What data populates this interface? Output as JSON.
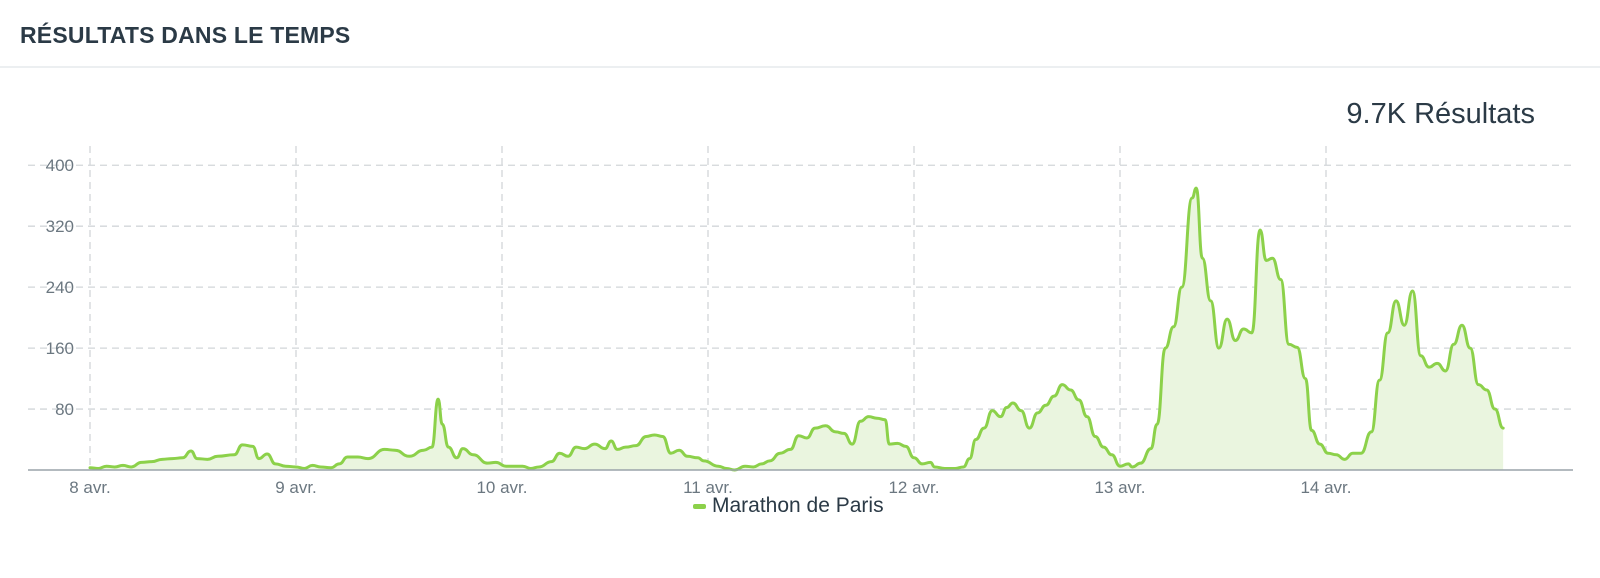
{
  "panel": {
    "title": "RÉSULTATS DANS LE TEMPS",
    "total": "9.7K Résultats"
  },
  "colors": {
    "line": "#8cd14a",
    "fill": "#eaf5df",
    "grid": "#d2d6d9",
    "axis": "#9aa3aa"
  },
  "chart_data": {
    "type": "area",
    "xlabel": "",
    "ylabel": "",
    "x_ticks": [
      "8 avr.",
      "9 avr.",
      "10 avr.",
      "11 avr.",
      "12 avr.",
      "13 avr.",
      "14 avr."
    ],
    "y_ticks": [
      80,
      160,
      240,
      320,
      400
    ],
    "ylim": [
      0,
      420
    ],
    "xlim": [
      0,
      6.95
    ],
    "grid": true,
    "legend_position": "bottom",
    "series": [
      {
        "name": "Marathon de Paris",
        "x_unit": "days since 8 avr.",
        "points": [
          [
            0.0,
            3
          ],
          [
            0.04,
            2
          ],
          [
            0.08,
            5
          ],
          [
            0.12,
            4
          ],
          [
            0.16,
            6
          ],
          [
            0.2,
            4
          ],
          [
            0.25,
            10
          ],
          [
            0.3,
            11
          ],
          [
            0.35,
            14
          ],
          [
            0.4,
            15
          ],
          [
            0.45,
            16
          ],
          [
            0.49,
            25
          ],
          [
            0.52,
            15
          ],
          [
            0.57,
            14
          ],
          [
            0.62,
            18
          ],
          [
            0.7,
            20
          ],
          [
            0.74,
            33
          ],
          [
            0.79,
            31
          ],
          [
            0.82,
            15
          ],
          [
            0.86,
            21
          ],
          [
            0.9,
            8
          ],
          [
            0.95,
            5
          ],
          [
            1.0,
            4
          ],
          [
            1.04,
            2
          ],
          [
            1.08,
            6
          ],
          [
            1.12,
            4
          ],
          [
            1.17,
            3
          ],
          [
            1.21,
            8
          ],
          [
            1.25,
            17
          ],
          [
            1.3,
            17
          ],
          [
            1.35,
            15
          ],
          [
            1.43,
            27
          ],
          [
            1.48,
            26
          ],
          [
            1.55,
            18
          ],
          [
            1.62,
            26
          ],
          [
            1.66,
            30
          ],
          [
            1.69,
            93
          ],
          [
            1.71,
            60
          ],
          [
            1.74,
            30
          ],
          [
            1.78,
            16
          ],
          [
            1.81,
            28
          ],
          [
            1.86,
            20
          ],
          [
            1.93,
            9
          ],
          [
            1.97,
            10
          ],
          [
            2.02,
            5
          ],
          [
            2.1,
            5
          ],
          [
            2.14,
            2
          ],
          [
            2.18,
            4
          ],
          [
            2.24,
            11
          ],
          [
            2.28,
            22
          ],
          [
            2.32,
            18
          ],
          [
            2.36,
            30
          ],
          [
            2.4,
            28
          ],
          [
            2.45,
            34
          ],
          [
            2.5,
            28
          ],
          [
            2.53,
            38
          ],
          [
            2.56,
            27
          ],
          [
            2.6,
            30
          ],
          [
            2.65,
            32
          ],
          [
            2.7,
            44
          ],
          [
            2.74,
            46
          ],
          [
            2.78,
            44
          ],
          [
            2.82,
            22
          ],
          [
            2.86,
            26
          ],
          [
            2.9,
            18
          ],
          [
            2.95,
            16
          ],
          [
            2.98,
            12
          ],
          [
            3.05,
            5
          ],
          [
            3.09,
            2
          ],
          [
            3.13,
            0
          ],
          [
            3.18,
            5
          ],
          [
            3.22,
            4
          ],
          [
            3.26,
            8
          ],
          [
            3.3,
            12
          ],
          [
            3.35,
            22
          ],
          [
            3.4,
            27
          ],
          [
            3.44,
            45
          ],
          [
            3.48,
            42
          ],
          [
            3.52,
            55
          ],
          [
            3.57,
            58
          ],
          [
            3.62,
            50
          ],
          [
            3.66,
            48
          ],
          [
            3.7,
            34
          ],
          [
            3.74,
            64
          ],
          [
            3.78,
            70
          ],
          [
            3.82,
            68
          ],
          [
            3.86,
            66
          ],
          [
            3.88,
            34
          ],
          [
            3.92,
            35
          ],
          [
            3.96,
            31
          ],
          [
            4.0,
            16
          ],
          [
            4.04,
            8
          ],
          [
            4.08,
            10
          ],
          [
            4.1,
            4
          ],
          [
            4.15,
            2
          ],
          [
            4.2,
            2
          ],
          [
            4.24,
            4
          ],
          [
            4.27,
            15
          ],
          [
            4.3,
            40
          ],
          [
            4.34,
            55
          ],
          [
            4.38,
            78
          ],
          [
            4.42,
            70
          ],
          [
            4.45,
            82
          ],
          [
            4.48,
            88
          ],
          [
            4.52,
            78
          ],
          [
            4.56,
            55
          ],
          [
            4.6,
            75
          ],
          [
            4.64,
            85
          ],
          [
            4.68,
            97
          ],
          [
            4.72,
            112
          ],
          [
            4.76,
            105
          ],
          [
            4.8,
            92
          ],
          [
            4.84,
            70
          ],
          [
            4.88,
            44
          ],
          [
            4.92,
            30
          ],
          [
            4.96,
            20
          ],
          [
            5.0,
            5
          ],
          [
            5.04,
            8
          ],
          [
            5.06,
            4
          ],
          [
            5.1,
            9
          ],
          [
            5.15,
            28
          ],
          [
            5.18,
            60
          ],
          [
            5.22,
            160
          ],
          [
            5.26,
            188
          ],
          [
            5.3,
            240
          ],
          [
            5.35,
            357
          ],
          [
            5.37,
            370
          ],
          [
            5.4,
            278
          ],
          [
            5.44,
            222
          ],
          [
            5.48,
            160
          ],
          [
            5.52,
            198
          ],
          [
            5.56,
            170
          ],
          [
            5.6,
            185
          ],
          [
            5.64,
            180
          ],
          [
            5.68,
            315
          ],
          [
            5.71,
            275
          ],
          [
            5.74,
            278
          ],
          [
            5.78,
            250
          ],
          [
            5.82,
            165
          ],
          [
            5.86,
            161
          ],
          [
            5.9,
            120
          ],
          [
            5.93,
            52
          ],
          [
            5.97,
            34
          ],
          [
            6.01,
            22
          ],
          [
            6.05,
            20
          ],
          [
            6.09,
            14
          ],
          [
            6.13,
            22
          ],
          [
            6.17,
            22
          ],
          [
            6.22,
            50
          ],
          [
            6.26,
            118
          ],
          [
            6.3,
            180
          ],
          [
            6.34,
            222
          ],
          [
            6.38,
            190
          ],
          [
            6.42,
            235
          ],
          [
            6.46,
            150
          ],
          [
            6.5,
            135
          ],
          [
            6.54,
            140
          ],
          [
            6.58,
            130
          ],
          [
            6.62,
            165
          ],
          [
            6.66,
            190
          ],
          [
            6.7,
            160
          ],
          [
            6.74,
            112
          ],
          [
            6.78,
            105
          ],
          [
            6.82,
            80
          ],
          [
            6.86,
            55
          ]
        ]
      }
    ]
  }
}
